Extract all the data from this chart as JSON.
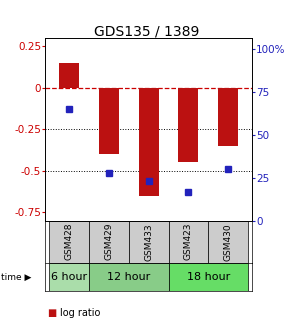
{
  "title": "GDS135 / 1389",
  "samples": [
    "GSM428",
    "GSM429",
    "GSM433",
    "GSM423",
    "GSM430"
  ],
  "log_ratio": [
    0.15,
    -0.4,
    -0.65,
    -0.45,
    -0.35
  ],
  "percentile_rank": [
    65,
    28,
    23,
    17,
    30
  ],
  "time_groups": [
    {
      "label": "6 hour",
      "start": 0,
      "end": 1,
      "color": "#aaddaa"
    },
    {
      "label": "12 hour",
      "start": 1,
      "end": 3,
      "color": "#88cc88"
    },
    {
      "label": "18 hour",
      "start": 3,
      "end": 5,
      "color": "#66dd66"
    }
  ],
  "ylim_left": [
    -0.8,
    0.3
  ],
  "ylim_right": [
    0,
    106.67
  ],
  "yticks_left": [
    0.25,
    0.0,
    -0.25,
    -0.5,
    -0.75
  ],
  "yticks_right": [
    100,
    75,
    50,
    25,
    0
  ],
  "bar_color": "#bb1111",
  "dot_color": "#2222bb",
  "hline_zero_color": "#cc0000",
  "hline_grid_color": "#000000",
  "bar_width": 0.5,
  "background_color": "#ffffff",
  "sample_box_color": "#cccccc",
  "title_fontsize": 10,
  "tick_fontsize": 7.5,
  "legend_fontsize": 7,
  "sample_fontsize": 6.5,
  "time_fontsize": 8
}
